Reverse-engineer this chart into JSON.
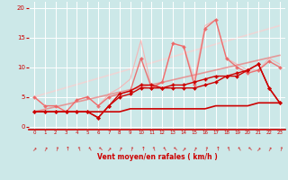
{
  "background_color": "#cce8e8",
  "grid_color": "#ffffff",
  "xlabel": "Vent moyen/en rafales ( km/h )",
  "xlabel_color": "#cc0000",
  "tick_color": "#cc0000",
  "ylim": [
    -0.5,
    21
  ],
  "xlim": [
    -0.5,
    23.5
  ],
  "yticks": [
    0,
    5,
    10,
    15,
    20
  ],
  "xticks": [
    0,
    1,
    2,
    3,
    4,
    5,
    6,
    7,
    8,
    9,
    10,
    11,
    12,
    13,
    14,
    15,
    16,
    17,
    18,
    19,
    20,
    21,
    22,
    23
  ],
  "lines": [
    {
      "x": [
        0,
        1,
        2,
        3,
        4,
        5,
        6,
        7,
        8,
        9,
        10,
        11,
        12,
        13,
        14,
        15,
        16,
        17,
        18,
        19,
        20,
        21,
        22,
        23
      ],
      "y": [
        2.5,
        2.5,
        2.5,
        2.5,
        2.5,
        2.5,
        2.5,
        2.5,
        2.5,
        3.0,
        3.0,
        3.0,
        3.0,
        3.0,
        3.0,
        3.0,
        3.0,
        3.5,
        3.5,
        3.5,
        3.5,
        4.0,
        4.0,
        4.0
      ],
      "color": "#cc0000",
      "linewidth": 1.2,
      "marker": null,
      "alpha": 1.0,
      "zorder": 5
    },
    {
      "x": [
        0,
        1,
        2,
        3,
        4,
        5,
        6,
        7,
        8,
        9,
        10,
        11,
        12,
        13,
        14,
        15,
        16,
        17,
        18,
        19,
        20,
        21,
        22,
        23
      ],
      "y": [
        2.5,
        2.5,
        2.5,
        2.5,
        2.5,
        2.5,
        1.5,
        3.5,
        5.0,
        5.5,
        6.5,
        6.5,
        6.5,
        6.5,
        6.5,
        6.5,
        7.0,
        7.5,
        8.5,
        8.5,
        9.5,
        10.5,
        6.5,
        4.0
      ],
      "color": "#cc0000",
      "linewidth": 1.0,
      "marker": "D",
      "markersize": 2.0,
      "alpha": 1.0,
      "zorder": 5
    },
    {
      "x": [
        0,
        1,
        2,
        3,
        4,
        5,
        6,
        7,
        8,
        9,
        10,
        11,
        12,
        13,
        14,
        15,
        16,
        17,
        18,
        19,
        20,
        21,
        22,
        23
      ],
      "y": [
        2.5,
        2.5,
        2.5,
        2.5,
        2.5,
        2.5,
        1.5,
        3.5,
        5.5,
        6.0,
        7.0,
        7.0,
        6.5,
        7.0,
        7.0,
        7.5,
        8.0,
        8.5,
        8.5,
        9.0,
        9.5,
        10.5,
        6.5,
        4.0
      ],
      "color": "#cc0000",
      "linewidth": 1.0,
      "marker": "P",
      "markersize": 2.5,
      "alpha": 1.0,
      "zorder": 5
    },
    {
      "x": [
        0,
        1,
        2,
        3,
        4,
        5,
        6,
        7,
        8,
        9,
        10,
        11,
        12,
        13,
        14,
        15,
        16,
        17,
        18,
        19,
        20,
        21,
        22,
        23
      ],
      "y": [
        5.0,
        3.5,
        3.5,
        2.5,
        4.5,
        5.0,
        3.5,
        5.0,
        5.5,
        6.0,
        11.5,
        6.5,
        7.5,
        14.0,
        13.5,
        7.0,
        16.5,
        18.0,
        11.5,
        10.0,
        9.0,
        9.5,
        11.0,
        10.0
      ],
      "color": "#ee6666",
      "linewidth": 1.0,
      "marker": "D",
      "markersize": 2.0,
      "alpha": 0.9,
      "zorder": 3
    },
    {
      "x": [
        0,
        1,
        2,
        3,
        4,
        5,
        6,
        7,
        8,
        9,
        10,
        11,
        12,
        13,
        14,
        15,
        16,
        17,
        18,
        19,
        20,
        21,
        22,
        23
      ],
      "y": [
        5.0,
        3.5,
        3.5,
        2.5,
        4.5,
        5.0,
        3.5,
        5.5,
        6.5,
        8.0,
        14.5,
        6.5,
        7.5,
        14.0,
        13.5,
        8.0,
        17.0,
        18.0,
        11.5,
        10.5,
        9.5,
        9.5,
        11.5,
        10.5
      ],
      "color": "#ffaaaa",
      "linewidth": 0.8,
      "marker": null,
      "alpha": 0.8,
      "zorder": 2
    },
    {
      "x": [
        0,
        23
      ],
      "y": [
        2.5,
        12.0
      ],
      "color": "#ee7777",
      "linewidth": 1.2,
      "marker": null,
      "alpha": 0.7,
      "zorder": 2
    },
    {
      "x": [
        0,
        23
      ],
      "y": [
        5.0,
        17.0
      ],
      "color": "#ffcccc",
      "linewidth": 1.2,
      "marker": null,
      "alpha": 0.65,
      "zorder": 1
    }
  ],
  "wind_symbols": [
    0,
    1,
    2,
    3,
    4,
    5,
    6,
    7,
    8,
    9,
    10,
    11,
    12,
    13,
    14,
    15,
    16,
    17,
    18,
    19,
    20,
    21,
    22,
    23
  ]
}
